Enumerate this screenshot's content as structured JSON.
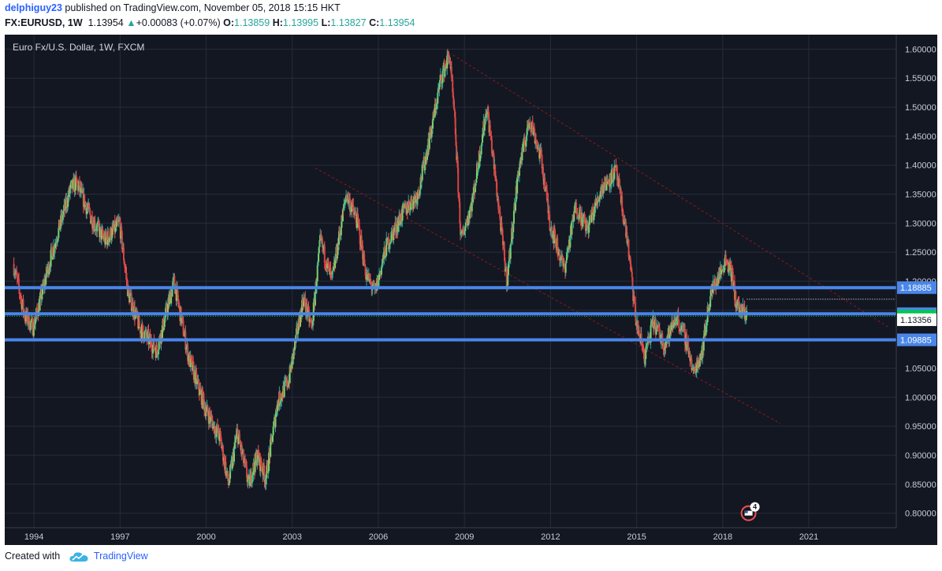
{
  "header": {
    "publisher": "delphiguy23",
    "published_text": "published on TradingView.com, November 05, 2018 15:15 HKT",
    "symbol": "FX:EURUSD, 1W",
    "last": "1.13954",
    "change": "+0.00083 (+0.07%)",
    "o_label": "O:",
    "o": "1.13859",
    "h_label": "H:",
    "h": "1.13995",
    "l_label": "L:",
    "l": "1.13827",
    "c_label": "C:",
    "c": "1.13954"
  },
  "footer": {
    "created_with": "Created with",
    "brand": "TradingView"
  },
  "colors": {
    "background": "#131722",
    "grid": "#262c3a",
    "up": "#26a69a",
    "down": "#ef5350",
    "hline": "#4a86e8",
    "price": "#00c853",
    "trend": "#8b1a1a",
    "axis_text": "#c9ccd4"
  },
  "icon_names": {
    "logo": "tradingview-cloud-icon",
    "flag": "us-flag-event-icon"
  },
  "event_badge": "4",
  "chart_data": {
    "type": "candlestick",
    "title": "Euro Fx/U.S. Dollar, 1W, FXCM",
    "xlabel": "",
    "ylabel": "",
    "x_range": [
      1993.2,
      2023.8
    ],
    "ylim": [
      0.775,
      1.625
    ],
    "x_ticks": [
      "1994",
      "1997",
      "2000",
      "2003",
      "2006",
      "2009",
      "2012",
      "2015",
      "2018",
      "2021"
    ],
    "y_ticks": [
      "1.60000",
      "1.55000",
      "1.50000",
      "1.45000",
      "1.40000",
      "1.35000",
      "1.30000",
      "1.25000",
      "1.20000",
      "1.15000",
      "1.10000",
      "1.05000",
      "1.00000",
      "0.95000",
      "0.90000",
      "0.85000",
      "0.80000"
    ],
    "grid": true,
    "price_path": [
      [
        1993.3,
        1.23
      ],
      [
        1993.7,
        1.14
      ],
      [
        1994.0,
        1.12
      ],
      [
        1994.6,
        1.24
      ],
      [
        1995.3,
        1.36
      ],
      [
        1995.5,
        1.37
      ],
      [
        1996.0,
        1.31
      ],
      [
        1996.5,
        1.27
      ],
      [
        1997.0,
        1.3
      ],
      [
        1997.3,
        1.18
      ],
      [
        1997.7,
        1.12
      ],
      [
        1998.3,
        1.08
      ],
      [
        1998.9,
        1.2
      ],
      [
        1999.4,
        1.07
      ],
      [
        2000.0,
        0.98
      ],
      [
        2000.5,
        0.93
      ],
      [
        2000.8,
        0.85
      ],
      [
        2001.1,
        0.94
      ],
      [
        2001.5,
        0.85
      ],
      [
        2001.8,
        0.9
      ],
      [
        2002.1,
        0.86
      ],
      [
        2002.5,
        0.99
      ],
      [
        2002.9,
        1.03
      ],
      [
        2003.4,
        1.17
      ],
      [
        2003.7,
        1.12
      ],
      [
        2004.0,
        1.27
      ],
      [
        2004.4,
        1.2
      ],
      [
        2004.9,
        1.35
      ],
      [
        2005.3,
        1.3
      ],
      [
        2005.6,
        1.21
      ],
      [
        2005.9,
        1.18
      ],
      [
        2006.3,
        1.26
      ],
      [
        2006.9,
        1.32
      ],
      [
        2007.4,
        1.35
      ],
      [
        2007.9,
        1.47
      ],
      [
        2008.2,
        1.55
      ],
      [
        2008.5,
        1.59
      ],
      [
        2008.7,
        1.46
      ],
      [
        2008.9,
        1.27
      ],
      [
        2009.3,
        1.34
      ],
      [
        2009.8,
        1.5
      ],
      [
        2010.0,
        1.42
      ],
      [
        2010.5,
        1.2
      ],
      [
        2010.9,
        1.39
      ],
      [
        2011.3,
        1.48
      ],
      [
        2011.7,
        1.41
      ],
      [
        2012.0,
        1.3
      ],
      [
        2012.5,
        1.22
      ],
      [
        2012.9,
        1.33
      ],
      [
        2013.3,
        1.29
      ],
      [
        2013.8,
        1.36
      ],
      [
        2014.3,
        1.39
      ],
      [
        2014.7,
        1.27
      ],
      [
        2015.0,
        1.13
      ],
      [
        2015.3,
        1.07
      ],
      [
        2015.6,
        1.13
      ],
      [
        2016.0,
        1.09
      ],
      [
        2016.4,
        1.14
      ],
      [
        2016.8,
        1.09
      ],
      [
        2016.99,
        1.04
      ],
      [
        2017.3,
        1.08
      ],
      [
        2017.6,
        1.18
      ],
      [
        2018.0,
        1.22
      ],
      [
        2018.1,
        1.24
      ],
      [
        2018.3,
        1.22
      ],
      [
        2018.5,
        1.16
      ],
      [
        2018.8,
        1.14
      ],
      [
        2018.84,
        1.1395
      ]
    ],
    "horizontal_levels": [
      {
        "value": 1.18885,
        "label": "1.18885"
      },
      {
        "value": 1.14385,
        "label": "1.14385"
      },
      {
        "value": 1.09885,
        "label": "1.09885"
      }
    ],
    "last_price": {
      "value": 1.13954,
      "label": "1.13954"
    },
    "crosshair_price": {
      "value": 1.13356,
      "label": "1.13356"
    },
    "trendlines": [
      {
        "from": [
          2008.6,
          1.59
        ],
        "to": [
          2023.8,
          1.12
        ]
      },
      {
        "from": [
          2003.8,
          1.395
        ],
        "to": [
          2020.0,
          0.955
        ]
      }
    ],
    "event_marker": {
      "x": 2018.9,
      "y": 0.8
    }
  }
}
